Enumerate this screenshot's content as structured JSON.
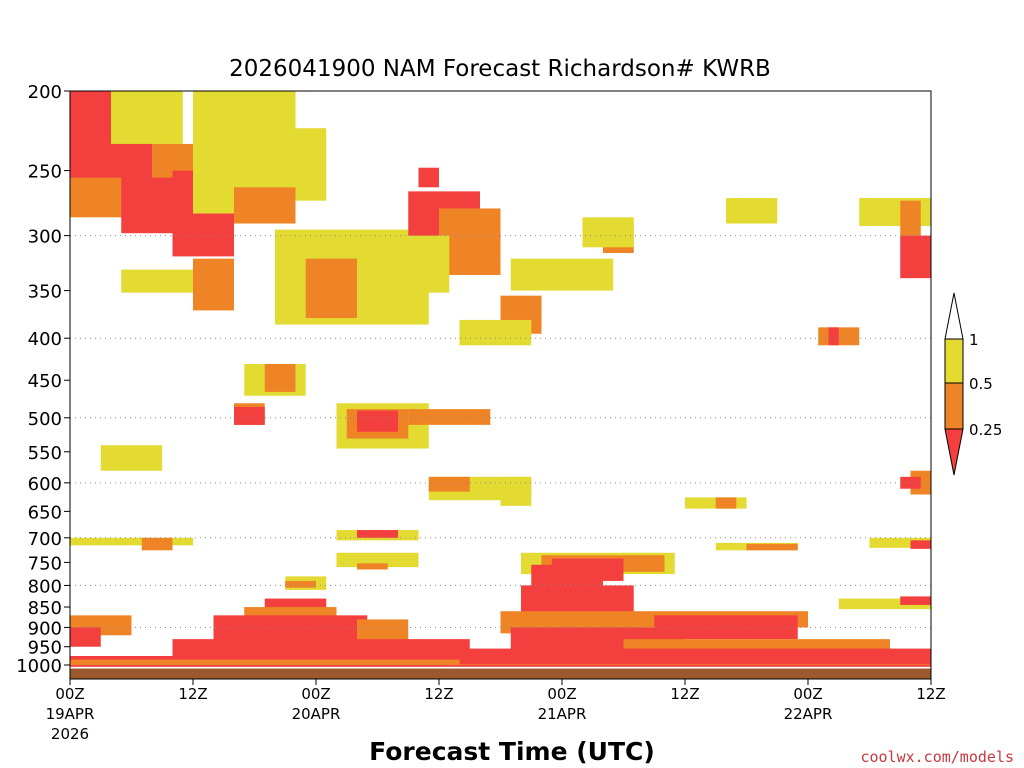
{
  "chart_data": {
    "type": "heatmap",
    "title": "2026041900 NAM Forecast Richardson# KWRB",
    "xlabel": "Forecast Time (UTC)",
    "ylabel": "",
    "credit": "coolwx.com/models",
    "x_unit": "forecast hour",
    "xlim": [
      0,
      84
    ],
    "ylim": [
      1000,
      200
    ],
    "y_scale": "log-pressure (hPa)",
    "y_ticks": [
      200,
      250,
      300,
      350,
      400,
      450,
      500,
      550,
      600,
      650,
      700,
      750,
      800,
      850,
      900,
      950,
      1000
    ],
    "x_ticks": [
      {
        "hour": 0,
        "label": "00Z",
        "date": "19APR",
        "year": "2026"
      },
      {
        "hour": 12,
        "label": "12Z",
        "date": "",
        "year": ""
      },
      {
        "hour": 24,
        "label": "00Z",
        "date": "20APR",
        "year": ""
      },
      {
        "hour": 36,
        "label": "12Z",
        "date": "",
        "year": ""
      },
      {
        "hour": 48,
        "label": "00Z",
        "date": "21APR",
        "year": ""
      },
      {
        "hour": 60,
        "label": "12Z",
        "date": "",
        "year": ""
      },
      {
        "hour": 72,
        "label": "00Z",
        "date": "22APR",
        "year": ""
      },
      {
        "hour": 84,
        "label": "12Z",
        "date": "",
        "year": ""
      }
    ],
    "gridlines_hPa": [
      300,
      400,
      500,
      600,
      700,
      800,
      900
    ],
    "legend": {
      "placement": "right",
      "labels": [
        "1",
        "0.5",
        "0.25"
      ],
      "classes": [
        {
          "name": "Ri > 1",
          "color": "#ffffff"
        },
        {
          "name": "0.5-1",
          "color": "#e3da32"
        },
        {
          "name": "0.25-0.5",
          "color": "#ee8425"
        },
        {
          "name": "< 0.25",
          "color": "#f43f3f"
        }
      ]
    },
    "colors": {
      "yellow": "#e3da32",
      "orange": "#ee8425",
      "red": "#f43f3f",
      "ground": "#9b5a2d"
    },
    "surface_pressure_hPa": 1010,
    "regions": [
      {
        "class": "red",
        "t0": 0,
        "t1": 8,
        "p0": 200,
        "p1": 268
      },
      {
        "class": "orange",
        "t0": 0,
        "t1": 10,
        "p0": 255,
        "p1": 285
      },
      {
        "class": "yellow",
        "t0": 4,
        "t1": 11,
        "p0": 200,
        "p1": 232
      },
      {
        "class": "red",
        "t0": 5,
        "t1": 14,
        "p0": 248,
        "p1": 298
      },
      {
        "class": "orange",
        "t0": 8,
        "t1": 16,
        "p0": 232,
        "p1": 255
      },
      {
        "class": "red",
        "t0": 10,
        "t1": 16,
        "p0": 250,
        "p1": 318
      },
      {
        "class": "orange",
        "t0": 13,
        "t1": 19,
        "p0": 200,
        "p1": 240
      },
      {
        "class": "yellow",
        "t0": 12,
        "t1": 22,
        "p0": 200,
        "p1": 282
      },
      {
        "class": "orange",
        "t0": 16,
        "t1": 22,
        "p0": 262,
        "p1": 290
      },
      {
        "class": "yellow",
        "t0": 22,
        "t1": 25,
        "p0": 222,
        "p1": 272
      },
      {
        "class": "yellow",
        "t0": 20,
        "t1": 35,
        "p0": 295,
        "p1": 385
      },
      {
        "class": "orange",
        "t0": 23,
        "t1": 28,
        "p0": 320,
        "p1": 378
      },
      {
        "class": "orange",
        "t0": 12,
        "t1": 16,
        "p0": 320,
        "p1": 370
      },
      {
        "class": "yellow",
        "t0": 5,
        "t1": 12,
        "p0": 330,
        "p1": 352
      },
      {
        "class": "red",
        "t0": 33,
        "t1": 40,
        "p0": 265,
        "p1": 318
      },
      {
        "class": "orange",
        "t0": 36,
        "t1": 42,
        "p0": 278,
        "p1": 335
      },
      {
        "class": "yellow",
        "t0": 29,
        "t1": 37,
        "p0": 300,
        "p1": 352
      },
      {
        "class": "red",
        "t0": 34,
        "t1": 36,
        "p0": 248,
        "p1": 262
      },
      {
        "class": "yellow",
        "t0": 43,
        "t1": 53,
        "p0": 320,
        "p1": 350
      },
      {
        "class": "orange",
        "t0": 42,
        "t1": 46,
        "p0": 355,
        "p1": 395
      },
      {
        "class": "yellow",
        "t0": 38,
        "t1": 45,
        "p0": 380,
        "p1": 408
      },
      {
        "class": "orange",
        "t0": 52,
        "t1": 55,
        "p0": 292,
        "p1": 315
      },
      {
        "class": "yellow",
        "t0": 50,
        "t1": 55,
        "p0": 285,
        "p1": 310
      },
      {
        "class": "yellow",
        "t0": 64,
        "t1": 69,
        "p0": 270,
        "p1": 290
      },
      {
        "class": "yellow",
        "t0": 77,
        "t1": 84,
        "p0": 270,
        "p1": 292
      },
      {
        "class": "orange",
        "t0": 81,
        "t1": 83,
        "p0": 272,
        "p1": 300
      },
      {
        "class": "red",
        "t0": 81,
        "t1": 84,
        "p0": 300,
        "p1": 338
      },
      {
        "class": "orange",
        "t0": 73,
        "t1": 77,
        "p0": 388,
        "p1": 408
      },
      {
        "class": "red",
        "t0": 74,
        "t1": 75,
        "p0": 388,
        "p1": 408
      },
      {
        "class": "yellow",
        "t0": 17,
        "t1": 23,
        "p0": 430,
        "p1": 470
      },
      {
        "class": "orange",
        "t0": 19,
        "t1": 22,
        "p0": 430,
        "p1": 465
      },
      {
        "class": "orange",
        "t0": 16,
        "t1": 19,
        "p0": 480,
        "p1": 510
      },
      {
        "class": "red",
        "t0": 16,
        "t1": 19,
        "p0": 485,
        "p1": 510
      },
      {
        "class": "yellow",
        "t0": 26,
        "t1": 35,
        "p0": 480,
        "p1": 545
      },
      {
        "class": "orange",
        "t0": 27,
        "t1": 33,
        "p0": 488,
        "p1": 530
      },
      {
        "class": "red",
        "t0": 28,
        "t1": 32,
        "p0": 490,
        "p1": 520
      },
      {
        "class": "orange",
        "t0": 33,
        "t1": 41,
        "p0": 488,
        "p1": 510
      },
      {
        "class": "yellow",
        "t0": 3,
        "t1": 9,
        "p0": 540,
        "p1": 580
      },
      {
        "class": "yellow",
        "t0": 35,
        "t1": 45,
        "p0": 590,
        "p1": 630
      },
      {
        "class": "orange",
        "t0": 35,
        "t1": 39,
        "p0": 590,
        "p1": 615
      },
      {
        "class": "yellow",
        "t0": 42,
        "t1": 45,
        "p0": 590,
        "p1": 640
      },
      {
        "class": "orange",
        "t0": 82,
        "t1": 84,
        "p0": 580,
        "p1": 620
      },
      {
        "class": "red",
        "t0": 81,
        "t1": 83,
        "p0": 590,
        "p1": 610
      },
      {
        "class": "yellow",
        "t0": 60,
        "t1": 66,
        "p0": 625,
        "p1": 645
      },
      {
        "class": "orange",
        "t0": 63,
        "t1": 65,
        "p0": 625,
        "p1": 645
      },
      {
        "class": "yellow",
        "t0": 0,
        "t1": 12,
        "p0": 700,
        "p1": 715
      },
      {
        "class": "orange",
        "t0": 7,
        "t1": 10,
        "p0": 700,
        "p1": 725
      },
      {
        "class": "yellow",
        "t0": 26,
        "t1": 34,
        "p0": 685,
        "p1": 705
      },
      {
        "class": "red",
        "t0": 28,
        "t1": 32,
        "p0": 685,
        "p1": 700
      },
      {
        "class": "yellow",
        "t0": 26,
        "t1": 34,
        "p0": 730,
        "p1": 760
      },
      {
        "class": "orange",
        "t0": 28,
        "t1": 31,
        "p0": 752,
        "p1": 765
      },
      {
        "class": "yellow",
        "t0": 63,
        "t1": 71,
        "p0": 710,
        "p1": 725
      },
      {
        "class": "orange",
        "t0": 66,
        "t1": 71,
        "p0": 712,
        "p1": 725
      },
      {
        "class": "yellow",
        "t0": 78,
        "t1": 84,
        "p0": 700,
        "p1": 720
      },
      {
        "class": "red",
        "t0": 82,
        "t1": 84,
        "p0": 705,
        "p1": 722
      },
      {
        "class": "yellow",
        "t0": 44,
        "t1": 59,
        "p0": 730,
        "p1": 775
      },
      {
        "class": "orange",
        "t0": 46,
        "t1": 58,
        "p0": 735,
        "p1": 770
      },
      {
        "class": "red",
        "t0": 45,
        "t1": 52,
        "p0": 755,
        "p1": 850
      },
      {
        "class": "red",
        "t0": 47,
        "t1": 54,
        "p0": 742,
        "p1": 790
      },
      {
        "class": "red",
        "t0": 44,
        "t1": 55,
        "p0": 800,
        "p1": 870
      },
      {
        "class": "orange",
        "t0": 42,
        "t1": 56,
        "p0": 860,
        "p1": 915
      },
      {
        "class": "red",
        "t0": 43,
        "t1": 60,
        "p0": 900,
        "p1": 960
      },
      {
        "class": "yellow",
        "t0": 21,
        "t1": 25,
        "p0": 780,
        "p1": 810
      },
      {
        "class": "orange",
        "t0": 21,
        "t1": 24,
        "p0": 790,
        "p1": 805
      },
      {
        "class": "red",
        "t0": 19,
        "t1": 25,
        "p0": 830,
        "p1": 880
      },
      {
        "class": "orange",
        "t0": 17,
        "t1": 26,
        "p0": 850,
        "p1": 880
      },
      {
        "class": "red",
        "t0": 14,
        "t1": 29,
        "p0": 870,
        "p1": 940
      },
      {
        "class": "orange",
        "t0": 28,
        "t1": 33,
        "p0": 880,
        "p1": 940
      },
      {
        "class": "red",
        "t0": 10,
        "t1": 39,
        "p0": 930,
        "p1": 985
      },
      {
        "class": "orange",
        "t0": 56,
        "t1": 72,
        "p0": 860,
        "p1": 900
      },
      {
        "class": "red",
        "t0": 57,
        "t1": 71,
        "p0": 870,
        "p1": 930
      },
      {
        "class": "orange",
        "t0": 54,
        "t1": 80,
        "p0": 930,
        "p1": 965
      },
      {
        "class": "yellow",
        "t0": 75,
        "t1": 84,
        "p0": 830,
        "p1": 855
      },
      {
        "class": "red",
        "t0": 81,
        "t1": 84,
        "p0": 825,
        "p1": 845
      },
      {
        "class": "orange",
        "t0": 0,
        "t1": 6,
        "p0": 870,
        "p1": 920
      },
      {
        "class": "red",
        "t0": 0,
        "t1": 3,
        "p0": 900,
        "p1": 950
      },
      {
        "class": "red",
        "t0": 0,
        "t1": 84,
        "p0": 975,
        "p1": 1005
      },
      {
        "class": "orange",
        "t0": 0,
        "t1": 84,
        "p0": 985,
        "p1": 1000
      },
      {
        "class": "red",
        "t0": 38,
        "t1": 84,
        "p0": 955,
        "p1": 998
      }
    ]
  }
}
